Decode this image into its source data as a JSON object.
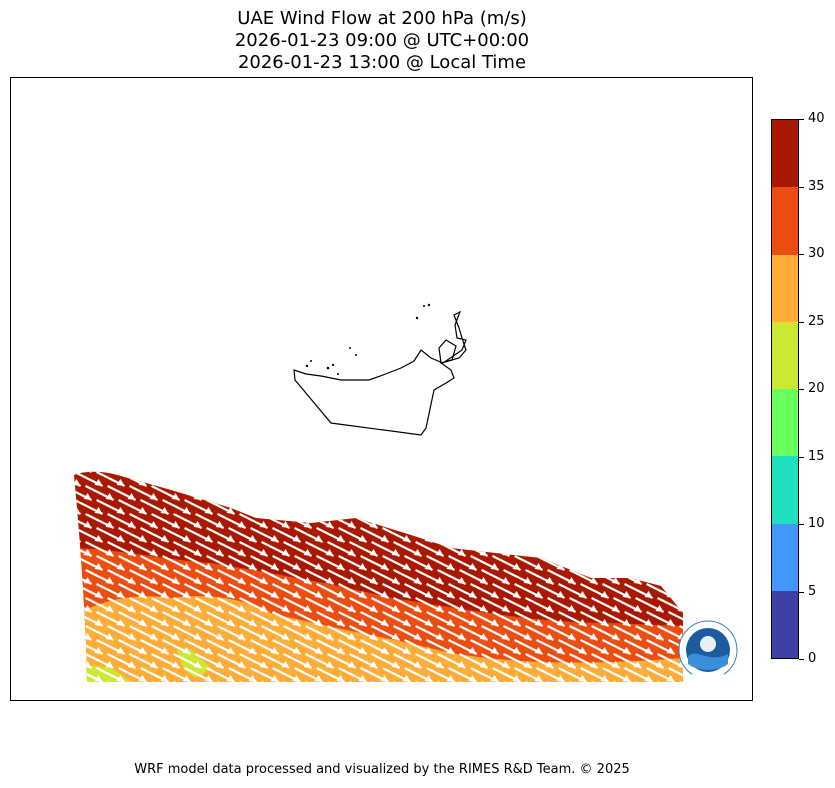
{
  "title": {
    "line1": "UAE Wind Flow at 200 hPa (m/s)",
    "line2": "2026-01-23 09:00 @ UTC+00:00",
    "line3": "2026-01-23 13:00 @ Local Time"
  },
  "colorbar": {
    "ticks": [
      "0",
      "5",
      "10",
      "15",
      "20",
      "25",
      "30",
      "35",
      "40"
    ],
    "colors": [
      "#3f3fa8",
      "#4496ff",
      "#1edfc0",
      "#67ff5b",
      "#cde832",
      "#ffac38",
      "#ec4e12",
      "#a91800"
    ]
  },
  "wind_field": {
    "quantity": "wind speed",
    "unit": "m/s",
    "level": "200 hPa",
    "speed_range": [
      20,
      40
    ],
    "direction": "from north-west (arrows pointing south-east)"
  },
  "logo": {
    "text": "RIMES",
    "ring_text": "Regional Integrated Multi-Hazard Early Warning System"
  },
  "credit": "WRF model data processed and visualized by the RIMES R&D Team. © 2025"
}
